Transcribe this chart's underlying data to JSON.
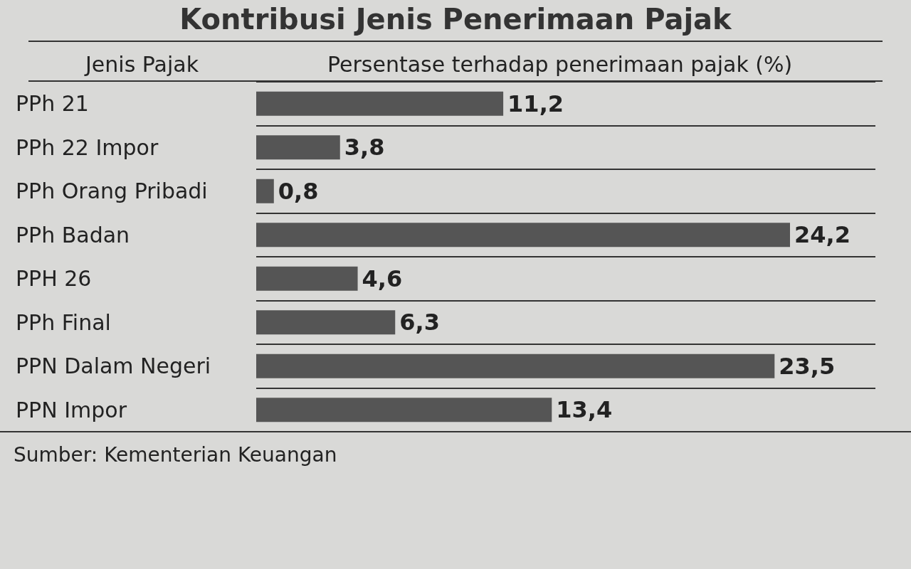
{
  "chart_data": {
    "type": "bar",
    "orientation": "horizontal",
    "title": "Kontribusi Jenis Penerimaan Pajak",
    "ylabel": "Jenis Pajak",
    "xlabel": "Persentase terhadap penerimaan pajak (%)",
    "categories": [
      "PPh 21",
      "PPh 22 Impor",
      "PPh Orang Pribadi",
      "PPh Badan",
      "PPH 26",
      "PPh Final",
      "PPN Dalam Negeri",
      "PPN Impor"
    ],
    "values": [
      11.2,
      3.8,
      0.8,
      24.2,
      4.6,
      6.3,
      23.5,
      13.4
    ],
    "value_labels": [
      "11,2",
      "3,8",
      "0,8",
      "24,2",
      "4,6",
      "6,3",
      "23,5",
      "13,4"
    ],
    "color": "#555555",
    "grid": "y",
    "tick_labels": "y",
    "annotations": [
      "Sumber: Kementerian Keuangan"
    ]
  }
}
